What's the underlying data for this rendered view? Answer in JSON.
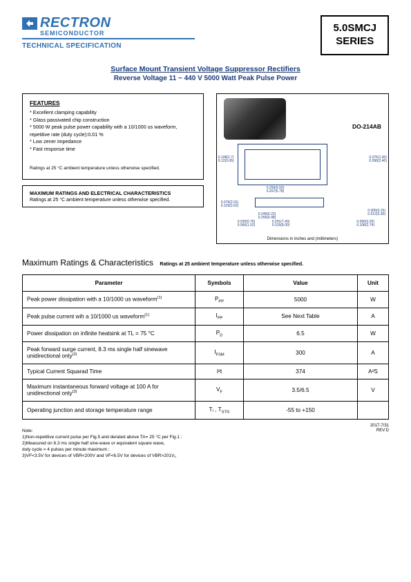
{
  "logo": {
    "brand": "RECTRON",
    "sub": "SEMICONDUCTOR",
    "spec_label": "TECHNICAL SPECIFICATION",
    "rule_color": "#2f6fb3"
  },
  "series_box": {
    "line1": "5.0SMCJ",
    "line2": "SERIES"
  },
  "title": {
    "line1": "Surface Mount Transient Voltage Suppressor Rectifiers",
    "line2": "Reverse Voltage 11 ~ 440 V  5000 Watt Peak Pulse Power"
  },
  "features": {
    "heading": "FEATURES",
    "items": [
      "Excellent clamping capability",
      "Glass passivated chip construction",
      "5000 W peak pulse power capability with a 10/1000 us waveform, repetitive rate (duty cycle):0.01 %",
      "Low zener impedance",
      "Fast response time"
    ],
    "ratings_note": "Ratings at 25 °C ambient temperature unless otherwise specified."
  },
  "maxchar": {
    "heading": "MAXIMUM RATINGS AND ELECTRICAL CHARACTERISTICS",
    "note": "Ratings at 25 °C ambient temperature unless otherwise specified."
  },
  "package": {
    "label": "DO-214AB",
    "foot": "Dimensions in inches and (millimeters)",
    "dims": {
      "d1a": "0.108(2.7)",
      "d1b": "0.12(3.05)",
      "d2a": "0.075(1.90)",
      "d2b": "0.096(2.40)",
      "d3a": "0.256(6.50)",
      "d3b": "0.267(6.78)",
      "d4a": "0.245(6.22)",
      "d4b": "0.255(6.48)",
      "d5a": "0.006(0.15)",
      "d5b": "0.012(0.30)",
      "d6a": "0.030(0.76)",
      "d6b": "0.060(1.52)",
      "d7a": "0.090(2.29)",
      "d7b": "0.108(2.74)",
      "d8a": "0.291(7.40)",
      "d8b": "0.315(8.00)",
      "d9a": "0.079(2.01)",
      "d9b": "0.103(2.62)"
    }
  },
  "section_title": {
    "main": "Maximum Ratings & Characteristics",
    "small": "Ratings at 25    ambient temperature unless otherwise specified."
  },
  "table": {
    "headers": [
      "Parameter",
      "Symbols",
      "Value",
      "Unit"
    ],
    "rows": [
      {
        "param": "Peak power dissipation with a 10/1000 us waveform",
        "sup": "(1)",
        "sym": "P",
        "sub": "PP",
        "value": "5000",
        "unit": "W"
      },
      {
        "param": "Peak pulse current wih a 10/1000 us waveform",
        "sup": "(1)",
        "sym": "I",
        "sub": "PP",
        "value": "See Next Table",
        "unit": "A"
      },
      {
        "param": "Power dissipation on infinite heatsink at TL = 75 °C",
        "sup": "",
        "sym": "P",
        "sub": "D",
        "value": "6.5",
        "unit": "W"
      },
      {
        "param": "Peak forward surge current, 8.3 ms single half sinewave unidirectional only",
        "sup": "(2)",
        "sym": "I",
        "sub": "FSM",
        "value": "300",
        "unit": "A"
      },
      {
        "param": "Typical Current Squarad Time",
        "sup": "",
        "sym": "I²t",
        "sub": "",
        "value": "374",
        "unit": "A²S"
      },
      {
        "param": "Maximum instantaneous forward voltage at 100 A for unidirectional only",
        "sup": "(3)",
        "sym": "V",
        "sub": "F",
        "value": "3.5/6.5",
        "unit": "V"
      },
      {
        "param": "Operating junction and storage temperature range",
        "sup": "",
        "sym": "Tⱼ , T",
        "sub": "STG",
        "value": "-55 to +150",
        "unit": ""
      }
    ]
  },
  "notes": {
    "heading": "Note:",
    "lines": [
      "1)Non-repetitive current pulse per Fig.5 and derated above TA= 25 °C per Fig.1 ;",
      "2)Measured on 8.3 ms single half sine-wave or equivalent square wave,",
      "   duty cycle = 4 pulses per minute maximum ;",
      "3)VF<3.5V for devices of VBR<200V and VF<6.5V for devices of VBR>201V。"
    ]
  },
  "footer_meta": {
    "date": "2017-7/31",
    "rev": "REV:D"
  }
}
